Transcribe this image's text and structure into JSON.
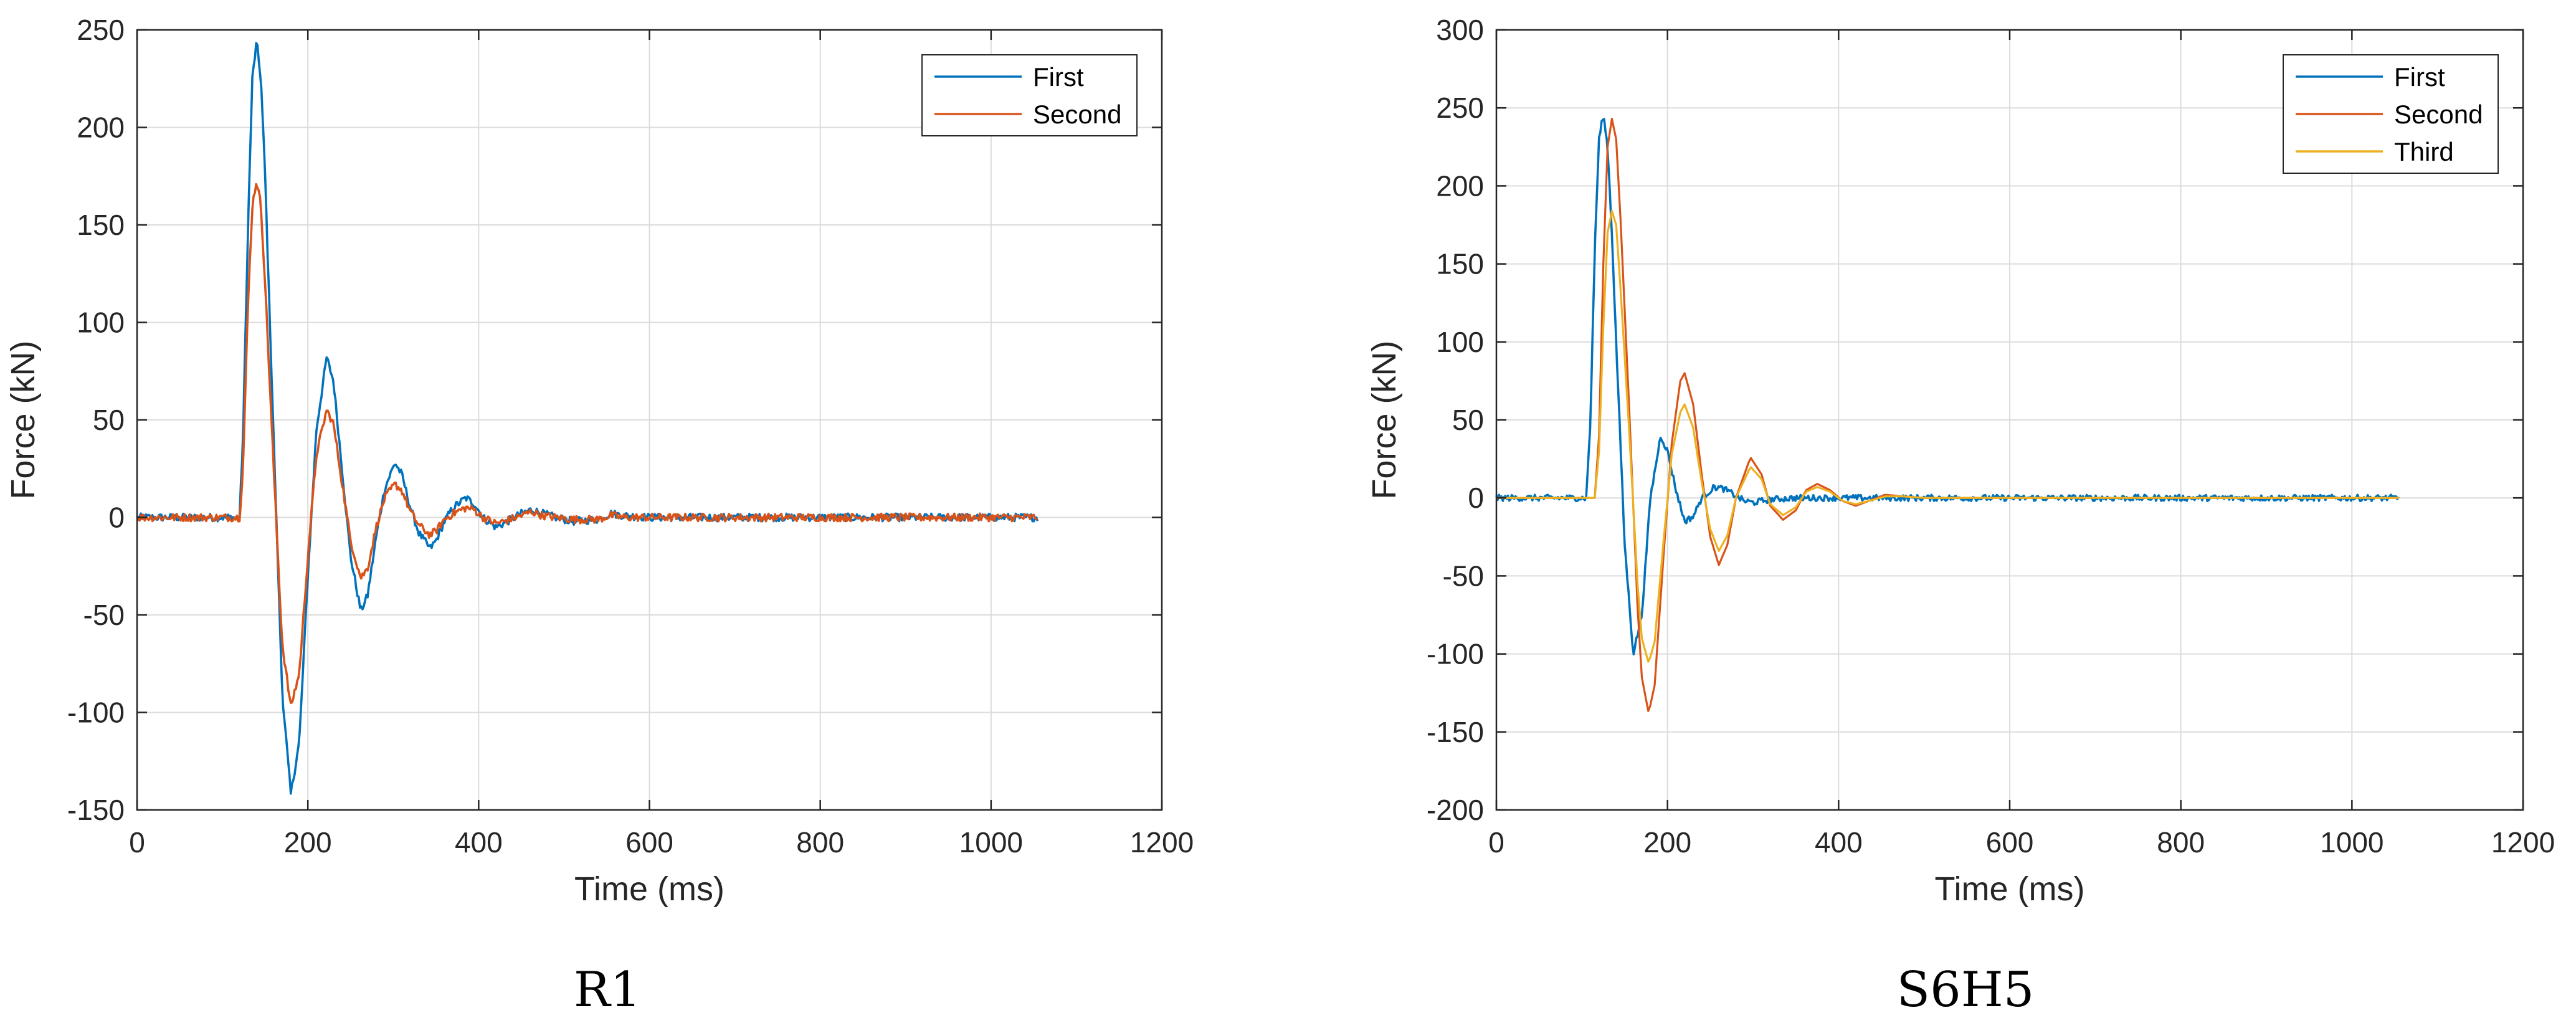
{
  "chart_data": [
    {
      "type": "line",
      "caption": "R1",
      "xlabel": "Time (ms)",
      "ylabel": "Force (kN)",
      "xlim": [
        0,
        1200
      ],
      "ylim": [
        -150,
        250
      ],
      "xticks": [
        0,
        200,
        400,
        600,
        800,
        1000,
        1200
      ],
      "yticks": [
        -150,
        -100,
        -50,
        0,
        50,
        100,
        150,
        200,
        250
      ],
      "grid": true,
      "legend_position": "top-right",
      "series": [
        {
          "name": "First",
          "color": "#0072BD",
          "noisy": true,
          "x": [
            0,
            120,
            124,
            130,
            135,
            140,
            145,
            150,
            160,
            170,
            180,
            190,
            200,
            210,
            222,
            230,
            240,
            250,
            262,
            270,
            280,
            290,
            302,
            310,
            320,
            330,
            343,
            350,
            360,
            370,
            385,
            395,
            405,
            420,
            430,
            450,
            462,
            475,
            490,
            510,
            540,
            555,
            570,
            600,
            650,
            700,
            800,
            900,
            1000,
            1055
          ],
          "y": [
            0,
            0,
            40,
            150,
            225,
            244,
            225,
            175,
            40,
            -90,
            -142,
            -115,
            -30,
            45,
            82,
            70,
            25,
            -20,
            -48,
            -40,
            -10,
            15,
            28,
            22,
            5,
            -8,
            -16,
            -12,
            -2,
            5,
            10,
            7,
            0,
            -5,
            -3,
            2,
            4,
            2,
            0,
            -2,
            -1,
            2,
            1,
            0,
            0,
            0,
            0,
            0,
            0,
            0
          ]
        },
        {
          "name": "Second",
          "color": "#D95319",
          "noisy": true,
          "x": [
            0,
            120,
            124,
            130,
            135,
            140,
            145,
            150,
            160,
            170,
            180,
            190,
            200,
            210,
            222,
            230,
            240,
            250,
            262,
            270,
            280,
            290,
            302,
            310,
            320,
            330,
            343,
            350,
            360,
            370,
            385,
            395,
            405,
            420,
            430,
            450,
            462,
            475,
            490,
            510,
            540,
            555,
            570,
            600,
            650,
            700,
            800,
            900,
            1000,
            1055
          ],
          "y": [
            0,
            0,
            25,
            110,
            160,
            173,
            160,
            120,
            25,
            -65,
            -97,
            -80,
            -20,
            32,
            55,
            48,
            18,
            -12,
            -31,
            -26,
            -5,
            10,
            17,
            14,
            3,
            -4,
            -9,
            -7,
            -1,
            2,
            5,
            4,
            0,
            -3,
            -2,
            1,
            3,
            1,
            0,
            -1,
            -1,
            1,
            0,
            0,
            0,
            0,
            0,
            0,
            0,
            0
          ]
        }
      ]
    },
    {
      "type": "line",
      "caption": "S6H5",
      "xlabel": "Time (ms)",
      "ylabel": "Force (kN)",
      "xlim": [
        0,
        1200
      ],
      "ylim": [
        -200,
        300
      ],
      "xticks": [
        0,
        200,
        400,
        600,
        800,
        1000,
        1200
      ],
      "yticks": [
        -200,
        -150,
        -100,
        -50,
        0,
        50,
        100,
        150,
        200,
        250,
        300
      ],
      "grid": true,
      "legend_position": "top-right",
      "series": [
        {
          "name": "First",
          "color": "#0072BD",
          "noisy": true,
          "x": [
            0,
            105,
            110,
            115,
            120,
            125,
            130,
            135,
            140,
            150,
            160,
            170,
            180,
            192,
            200,
            210,
            220,
            230,
            240,
            255,
            265,
            275,
            290,
            300,
            320,
            350,
            400,
            500,
            600,
            700,
            800,
            900,
            1000,
            1055
          ],
          "y": [
            0,
            0,
            50,
            160,
            230,
            246,
            225,
            170,
            100,
            -30,
            -100,
            -75,
            0,
            40,
            30,
            5,
            -15,
            -12,
            0,
            7,
            6,
            3,
            -2,
            -3,
            -1,
            0,
            0,
            0,
            0,
            0,
            0,
            0,
            0,
            0
          ]
        },
        {
          "name": "Second",
          "color": "#D95319",
          "noisy": false,
          "x": [
            0,
            115,
            120,
            125,
            130,
            135,
            140,
            145,
            155,
            165,
            170,
            178,
            185,
            195,
            205,
            215,
            220,
            230,
            240,
            250,
            260,
            270,
            280,
            297,
            310,
            320,
            335,
            350,
            362,
            375,
            390,
            405,
            420,
            435,
            455,
            475,
            500,
            550,
            600,
            700,
            800,
            900,
            1000,
            1055
          ],
          "y": [
            0,
            0,
            40,
            150,
            225,
            243,
            230,
            180,
            60,
            -70,
            -115,
            -138,
            -120,
            -40,
            35,
            75,
            80,
            60,
            15,
            -25,
            -43,
            -30,
            0,
            26,
            15,
            -5,
            -14,
            -8,
            5,
            9,
            5,
            -2,
            -5,
            -2,
            2,
            1,
            0,
            0,
            0,
            0,
            0,
            0,
            0,
            0
          ]
        },
        {
          "name": "Third",
          "color": "#EDB120",
          "noisy": false,
          "x": [
            0,
            115,
            120,
            125,
            130,
            135,
            140,
            145,
            155,
            165,
            170,
            178,
            185,
            195,
            205,
            215,
            220,
            230,
            240,
            250,
            260,
            270,
            280,
            297,
            310,
            320,
            335,
            350,
            362,
            375,
            390,
            405,
            420,
            435,
            455,
            475,
            500,
            550,
            600,
            700,
            800,
            900,
            1000,
            1055
          ],
          "y": [
            0,
            0,
            30,
            110,
            170,
            184,
            175,
            135,
            45,
            -55,
            -90,
            -106,
            -92,
            -30,
            28,
            55,
            60,
            45,
            10,
            -20,
            -34,
            -24,
            0,
            20,
            12,
            -4,
            -11,
            -6,
            4,
            7,
            4,
            -2,
            -4,
            -2,
            1,
            1,
            0,
            0,
            0,
            0,
            0,
            0,
            0,
            0
          ]
        }
      ]
    }
  ]
}
